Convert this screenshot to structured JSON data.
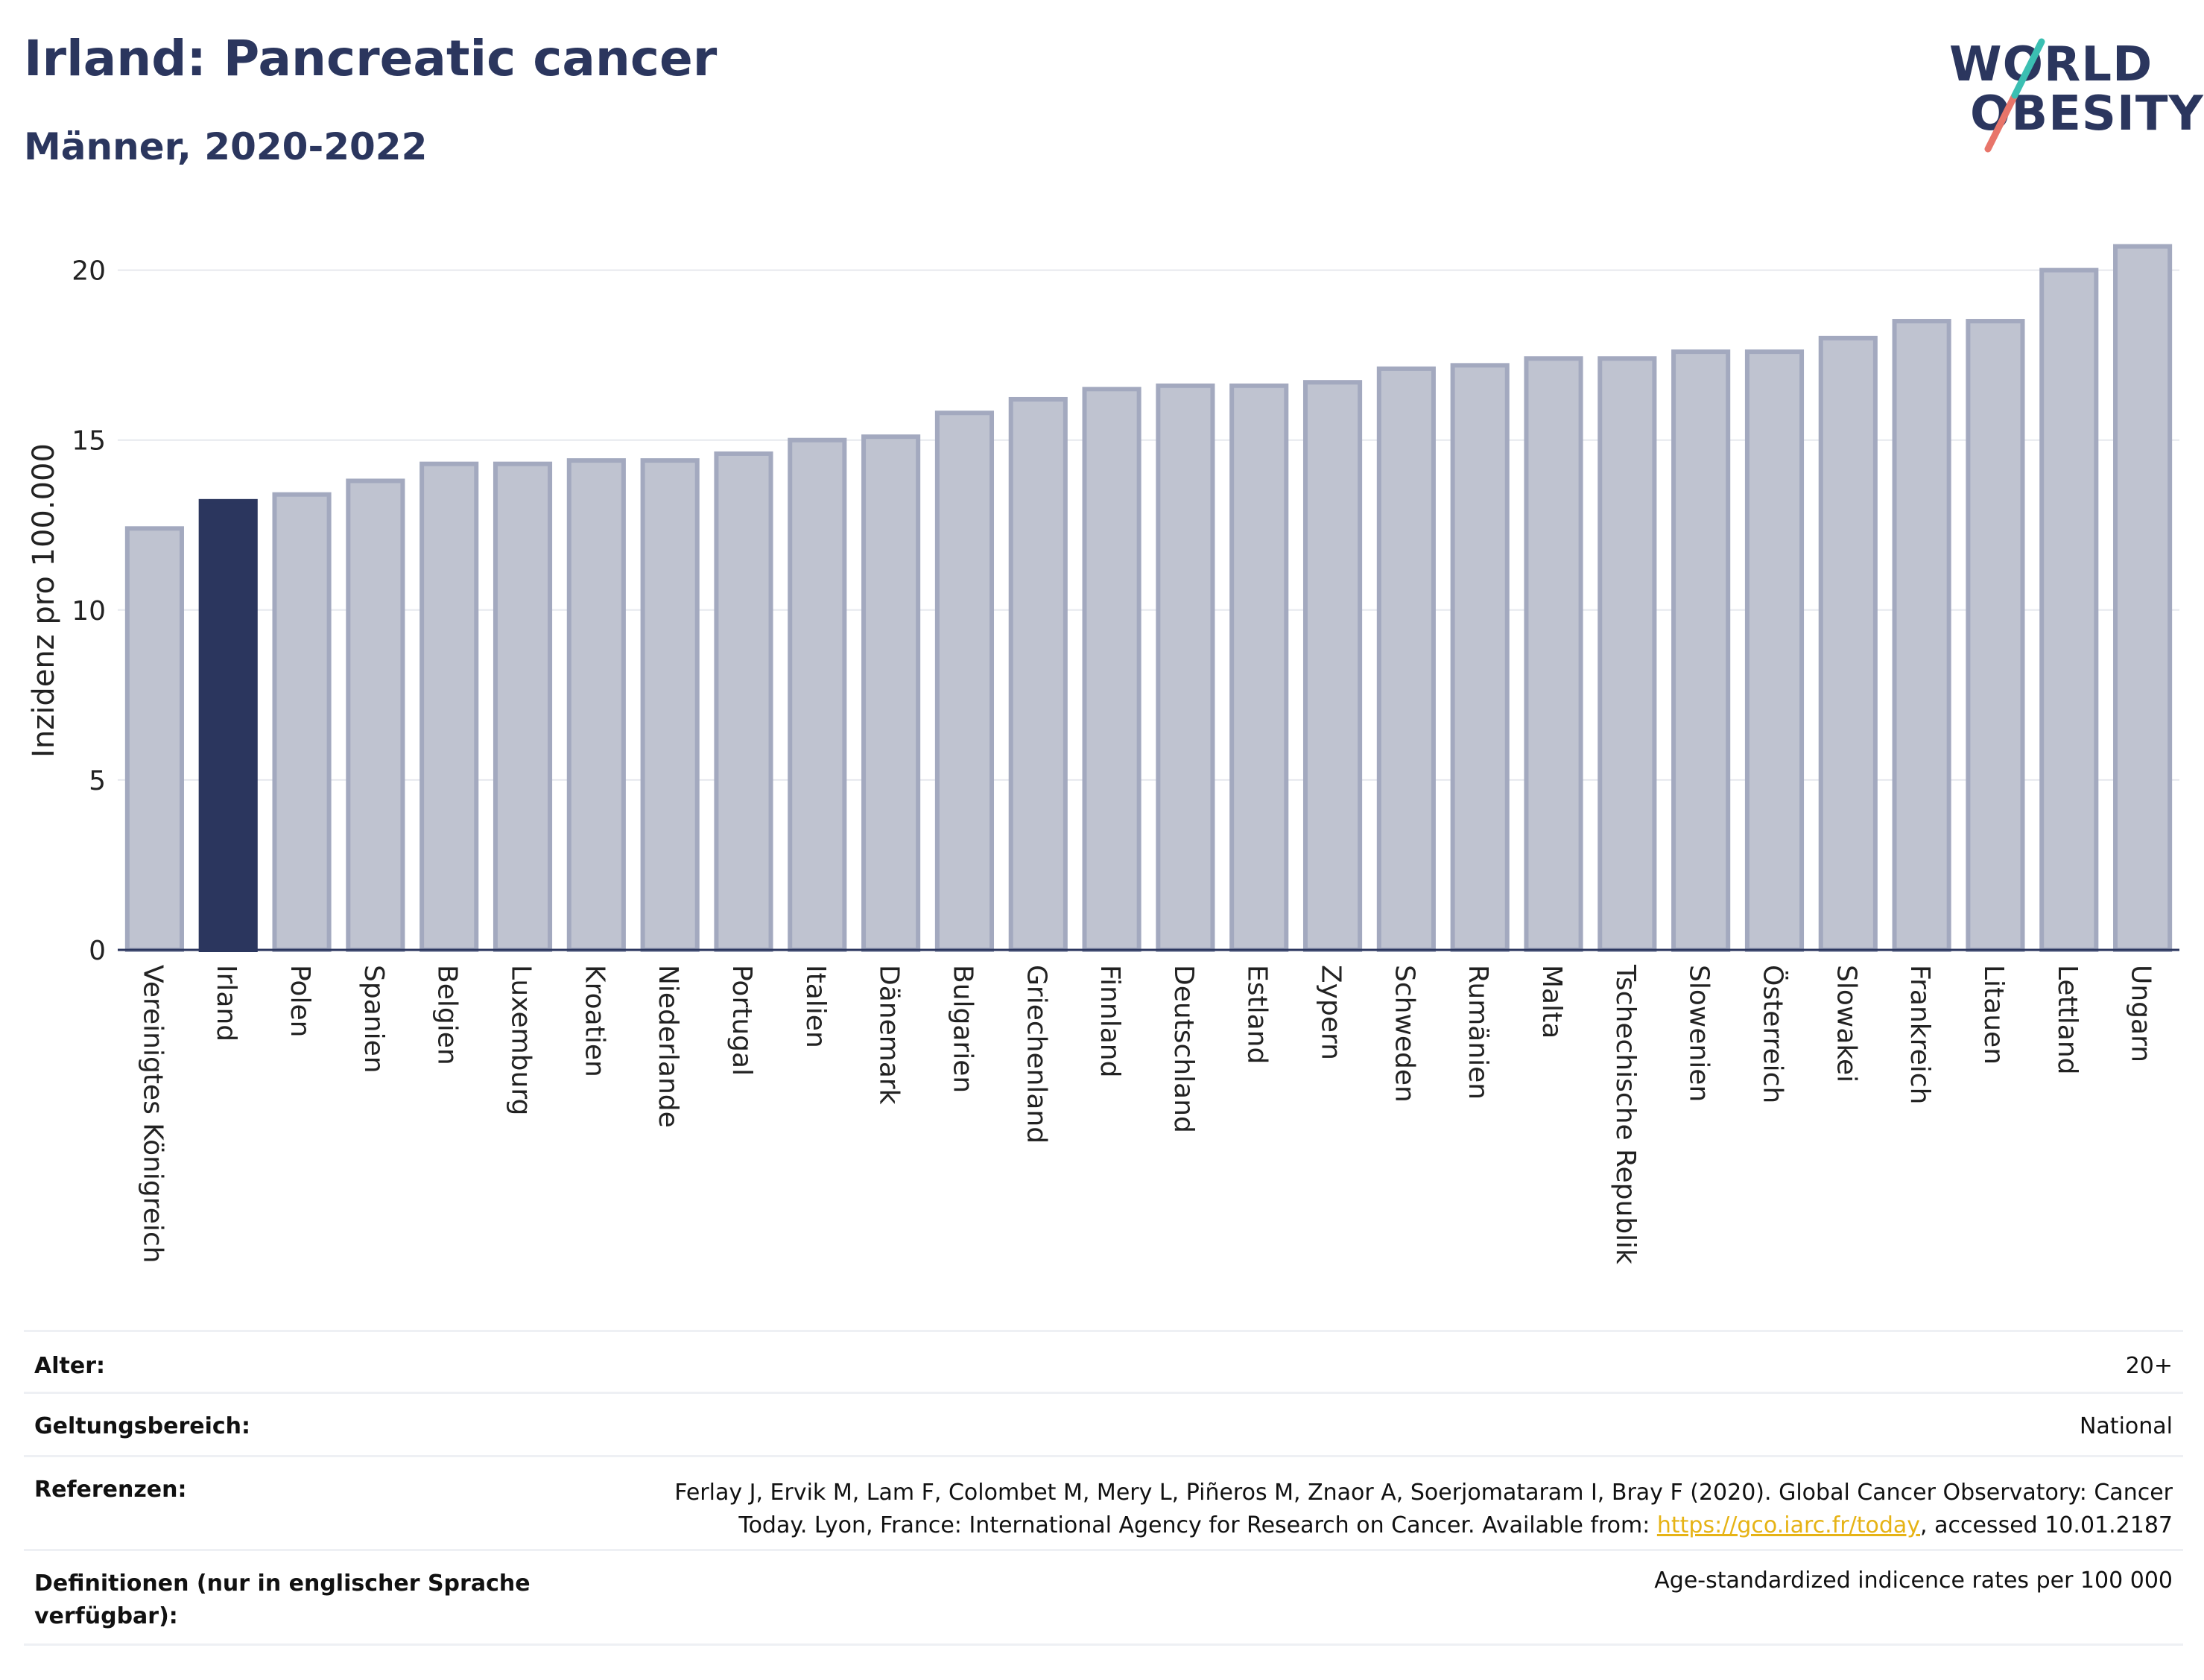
{
  "header": {
    "title": "Irland: Pancreatic cancer",
    "subtitle": "Männer, 2020-2022"
  },
  "logo": {
    "line1": "WORLD",
    "line2": "OBESITY"
  },
  "colors": {
    "highlight": "#2b365e",
    "bar": "#bfc3d0",
    "bar_border": "#a3a9bf",
    "link": "#e6b315",
    "logo_teal": "#3bbfb2",
    "logo_coral": "#e8756a"
  },
  "chart_data": {
    "type": "bar",
    "ylabel": "Inzidenz pro 100.000",
    "ylim": [
      0,
      21
    ],
    "yticks": [
      0,
      5,
      10,
      15,
      20
    ],
    "grid": true,
    "highlight": "Irland",
    "categories": [
      "Vereinigtes Königreich",
      "Irland",
      "Polen",
      "Spanien",
      "Belgien",
      "Luxemburg",
      "Kroatien",
      "Niederlande",
      "Portugal",
      "Italien",
      "Dänemark",
      "Bulgarien",
      "Griechenland",
      "Finnland",
      "Deutschland",
      "Estland",
      "Zypern",
      "Schweden",
      "Rumänien",
      "Malta",
      "Tschechische Republik",
      "Slowenien",
      "Österreich",
      "Slowakei",
      "Frankreich",
      "Litauen",
      "Lettland",
      "Ungarn"
    ],
    "values": [
      12.4,
      13.2,
      13.4,
      13.8,
      14.3,
      14.3,
      14.4,
      14.4,
      14.6,
      15.0,
      15.1,
      15.8,
      16.2,
      16.5,
      16.6,
      16.6,
      16.7,
      17.1,
      17.2,
      17.4,
      17.4,
      17.6,
      17.6,
      18.0,
      18.5,
      18.5,
      20.0,
      20.7
    ]
  },
  "meta": {
    "age_label": "Alter:",
    "age_value": "20+",
    "scope_label": "Geltungsbereich:",
    "scope_value": "National",
    "ref_label": "Referenzen:",
    "ref_text_1": "Ferlay J, Ervik M, Lam F, Colombet M, Mery L, Piñeros M, Znaor A, Soerjomataram I, Bray F (2020). Global Cancer Observatory: Cancer",
    "ref_text_2": "Today. Lyon, France: International Agency for Research on Cancer. Available from: ",
    "ref_link": "https://gco.iarc.fr/today",
    "ref_text_3": ", accessed 10.01.2187",
    "def_label_1": "Definitionen (nur in englischer Sprache",
    "def_label_2": "verfügbar):",
    "def_value": "Age-standardized indicence rates per 100 000"
  }
}
